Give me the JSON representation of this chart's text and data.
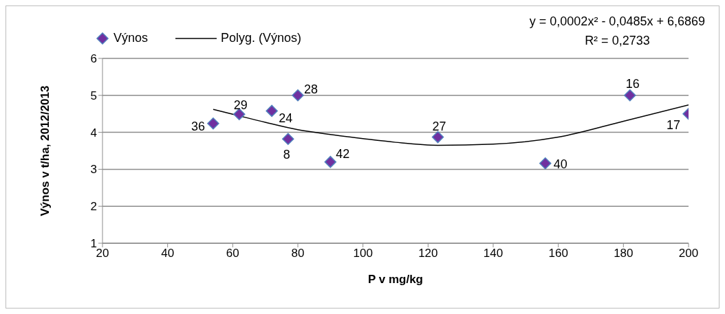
{
  "chart_data": {
    "type": "scatter",
    "xlabel": "P v mg/kg",
    "ylabel": "Výnos v t/ha, 2012/2013",
    "xlim": [
      20,
      200
    ],
    "xticks": [
      20,
      40,
      60,
      80,
      100,
      120,
      140,
      160,
      180,
      200
    ],
    "ylim": [
      1,
      6
    ],
    "yticks": [
      1,
      2,
      3,
      4,
      5,
      6
    ],
    "grid": "y",
    "legend": "top left",
    "series": [
      {
        "name": "Výnos",
        "color": "#7030a0",
        "marker": "diamond",
        "x": [
          54,
          62,
          72,
          77,
          80,
          90,
          123,
          156,
          182,
          200
        ],
        "values": [
          4.24,
          4.49,
          4.58,
          3.82,
          5.0,
          3.2,
          3.87,
          3.16,
          5.0,
          4.5
        ]
      },
      {
        "name": "Polyg. (Výnos)",
        "type": "line",
        "color": "#000000",
        "marker": "none",
        "x": [
          54,
          60,
          70,
          80,
          90,
          100,
          110,
          123,
          140,
          160,
          180,
          200
        ],
        "values": [
          4.62,
          4.49,
          4.27,
          4.07,
          3.94,
          3.83,
          3.73,
          3.65,
          3.68,
          3.87,
          4.3,
          4.74
        ]
      }
    ],
    "annotations": [
      {
        "text": "36",
        "x": 54,
        "y": 4.24
      },
      {
        "text": "29",
        "x": 62,
        "y": 4.49
      },
      {
        "text": "24",
        "x": 72,
        "y": 4.58
      },
      {
        "text": "8",
        "x": 77,
        "y": 3.82
      },
      {
        "text": "28",
        "x": 80,
        "y": 5.0
      },
      {
        "text": "42",
        "x": 90,
        "y": 3.2
      },
      {
        "text": "27",
        "x": 123,
        "y": 3.87
      },
      {
        "text": "40",
        "x": 156,
        "y": 3.16
      },
      {
        "text": "16",
        "x": 182,
        "y": 5.0
      },
      {
        "text": "17",
        "x": 200,
        "y": 4.5
      },
      "y = 0,0002x² - 0,0485x + 6,6869",
      "R² = 0,2733"
    ]
  }
}
